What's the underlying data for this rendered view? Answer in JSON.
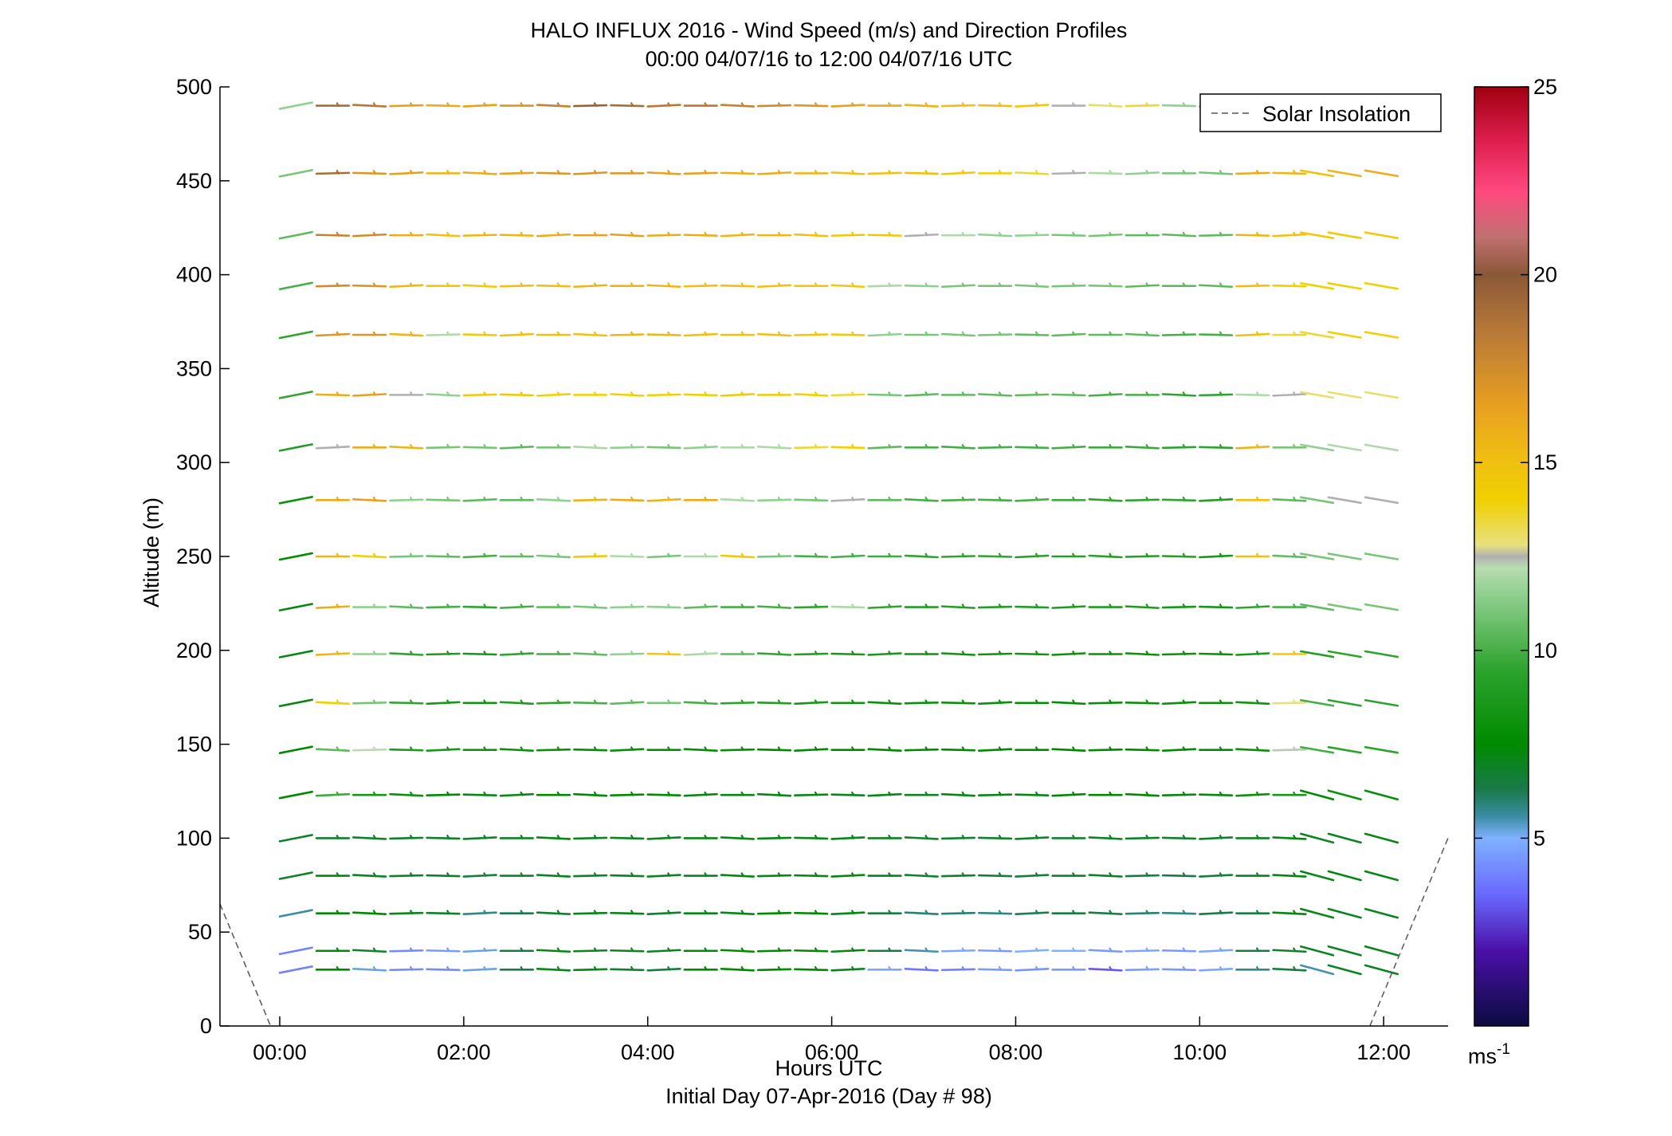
{
  "chart_data": {
    "type": "wind_barb_profile",
    "title": "HALO INFLUX 2016 - Wind Speed (m/s) and Direction Profiles",
    "subtitle": "00:00 04/07/16 to 12:00 04/07/16  UTC",
    "xlabel": "Hours UTC",
    "xlabel2": "Initial Day 07-Apr-2016 (Day # 98)",
    "ylabel": "Altitude (m)",
    "xlim": [
      -0.65,
      12.7
    ],
    "ylim": [
      0,
      500
    ],
    "x_ticks": [
      0,
      2,
      4,
      6,
      8,
      10,
      12
    ],
    "x_tick_labels": [
      "00:00",
      "02:00",
      "04:00",
      "06:00",
      "08:00",
      "10:00",
      "12:00"
    ],
    "y_ticks": [
      0,
      50,
      100,
      150,
      200,
      250,
      300,
      350,
      400,
      450,
      500
    ],
    "y_tick_labels": [
      "0",
      "50",
      "100",
      "150",
      "200",
      "250",
      "300",
      "350",
      "400",
      "450",
      "500"
    ],
    "legend": {
      "label": "Solar Insolation",
      "position": "top-right",
      "style": "dashed",
      "color": "#555555"
    },
    "solar_insolation_curve": {
      "description_free": true,
      "morning": [
        [
          -0.65,
          65
        ],
        [
          -0.1,
          0
        ]
      ],
      "evening": [
        [
          11.85,
          0
        ],
        [
          12.7,
          100
        ]
      ]
    },
    "colorbar": {
      "range": [
        0,
        25
      ],
      "ticks": [
        5,
        10,
        15,
        20,
        25
      ],
      "tick_labels": [
        "5",
        "10",
        "15",
        "20",
        "25"
      ],
      "unit_base": "ms",
      "unit_exp": "-1",
      "stops": [
        [
          0,
          "#0b0b40"
        ],
        [
          2,
          "#4a10a8"
        ],
        [
          3.5,
          "#6a6aff"
        ],
        [
          5,
          "#7fb0ff"
        ],
        [
          5.6,
          "#3a8ca0"
        ],
        [
          6.3,
          "#1a7a4a"
        ],
        [
          7.5,
          "#008a00"
        ],
        [
          9.5,
          "#2ea32e"
        ],
        [
          11.5,
          "#90d090"
        ],
        [
          12.2,
          "#b8dcb0"
        ],
        [
          12.5,
          "#b0b0b0"
        ],
        [
          12.8,
          "#e8e080"
        ],
        [
          14,
          "#f0d000"
        ],
        [
          15,
          "#f0c010"
        ],
        [
          16.5,
          "#e8a020"
        ],
        [
          18.5,
          "#b87838"
        ],
        [
          20,
          "#8a5838"
        ],
        [
          21,
          "#c07070"
        ],
        [
          22.2,
          "#ff4a80"
        ],
        [
          23.5,
          "#e02050"
        ],
        [
          25,
          "#a00010"
        ]
      ]
    },
    "levels": [
      30,
      40,
      60,
      80,
      100,
      123,
      147,
      172,
      198,
      223,
      250,
      280,
      308,
      336,
      368,
      394,
      421,
      454,
      490
    ],
    "times": [
      0,
      0.4,
      0.8,
      1.2,
      1.6,
      2.0,
      2.4,
      2.8,
      3.2,
      3.6,
      4.0,
      4.4,
      4.8,
      5.2,
      5.6,
      6.0,
      6.4,
      6.8,
      7.2,
      7.6,
      8.0,
      8.4,
      8.8,
      9.2,
      9.6,
      10.0,
      10.4,
      10.8,
      11.1,
      11.4,
      11.8
    ],
    "speed_profile_ms": {
      "30": [
        4.0,
        7.5,
        5.2,
        4.2,
        4.2,
        5.2,
        6.3,
        7.2,
        7.2,
        6.8,
        6.5,
        7.5,
        7.5,
        7.5,
        7.5,
        7.0,
        4.8,
        3.8,
        4.0,
        4.6,
        4.4,
        4.5,
        3.2,
        4.6,
        4.5,
        4.8,
        5.8,
        6.5,
        5.5,
        7.0,
        7.0
      ],
      "40": [
        4.0,
        7.3,
        6.8,
        4.2,
        4.6,
        5.2,
        6.5,
        7.2,
        7.0,
        7.0,
        7.0,
        7.3,
        7.5,
        7.5,
        7.5,
        7.2,
        6.5,
        5.5,
        4.8,
        4.6,
        5.0,
        5.0,
        4.5,
        4.8,
        4.5,
        4.8,
        6.5,
        6.8,
        7.0,
        6.8,
        7.0
      ],
      "60": [
        5.6,
        7.5,
        7.5,
        7.0,
        6.8,
        5.8,
        6.3,
        6.8,
        7.0,
        7.0,
        6.8,
        7.2,
        7.2,
        7.5,
        7.5,
        7.2,
        6.5,
        6.0,
        6.0,
        5.8,
        6.2,
        6.5,
        6.3,
        6.0,
        5.8,
        6.3,
        6.5,
        7.2,
        7.2,
        7.0,
        7.0
      ],
      "80": [
        6.8,
        7.2,
        7.0,
        6.8,
        6.8,
        6.5,
        6.8,
        7.0,
        6.8,
        7.0,
        7.0,
        7.0,
        7.2,
        7.2,
        7.2,
        7.2,
        7.0,
        6.8,
        6.8,
        6.5,
        6.5,
        6.8,
        6.8,
        6.5,
        6.3,
        6.5,
        7.0,
        7.2,
        7.2,
        7.2,
        7.2
      ],
      "100": [
        6.8,
        6.8,
        6.8,
        6.8,
        6.8,
        6.8,
        7.0,
        7.2,
        7.0,
        7.0,
        7.0,
        7.2,
        7.2,
        7.2,
        7.2,
        7.2,
        7.0,
        6.8,
        6.8,
        6.8,
        6.8,
        6.8,
        6.8,
        6.8,
        6.8,
        6.8,
        7.0,
        7.2,
        7.0,
        7.0,
        7.2
      ],
      "123": [
        7.5,
        9.8,
        8.5,
        8.0,
        7.5,
        7.2,
        7.2,
        7.5,
        7.5,
        7.5,
        7.5,
        7.2,
        7.2,
        7.2,
        7.2,
        7.0,
        7.2,
        7.0,
        7.2,
        7.2,
        7.2,
        7.5,
        7.5,
        7.5,
        7.2,
        7.2,
        8.0,
        8.5,
        7.5,
        8.0,
        7.8
      ],
      "147": [
        7.5,
        10.5,
        12.2,
        8.8,
        8.5,
        8.2,
        8.0,
        8.0,
        7.8,
        7.8,
        7.8,
        7.8,
        7.8,
        7.5,
        7.5,
        7.5,
        7.5,
        7.5,
        7.5,
        7.5,
        7.5,
        7.5,
        7.5,
        7.5,
        7.5,
        7.2,
        8.0,
        12.3,
        10.0,
        9.5,
        9.5
      ],
      "172": [
        7.2,
        14.0,
        11.0,
        9.5,
        8.5,
        8.2,
        8.8,
        9.5,
        10.0,
        10.5,
        11.0,
        10.0,
        9.5,
        9.0,
        8.5,
        8.2,
        8.0,
        8.0,
        8.0,
        8.0,
        7.8,
        7.8,
        7.8,
        8.0,
        8.0,
        8.0,
        8.2,
        12.8,
        10.0,
        9.5,
        9.5
      ],
      "198": [
        7.2,
        15.5,
        11.5,
        9.5,
        8.8,
        8.5,
        9.5,
        10.0,
        10.5,
        11.5,
        14.5,
        12.0,
        10.5,
        9.5,
        9.0,
        8.5,
        8.5,
        8.2,
        8.2,
        8.2,
        8.2,
        8.0,
        8.0,
        8.0,
        8.0,
        8.0,
        8.5,
        14.5,
        9.0,
        9.5,
        9.5
      ],
      "223": [
        7.2,
        16.0,
        11.5,
        10.5,
        10.0,
        9.5,
        10.0,
        10.5,
        11.0,
        11.5,
        11.5,
        10.5,
        10.0,
        10.0,
        9.5,
        12.0,
        9.5,
        9.0,
        9.0,
        9.0,
        9.0,
        8.8,
        8.8,
        8.8,
        8.5,
        8.5,
        9.5,
        10.0,
        10.5,
        11.0,
        11.0
      ],
      "250": [
        7.5,
        15.5,
        14.0,
        11.0,
        10.5,
        10.0,
        10.5,
        11.0,
        14.5,
        12.0,
        11.0,
        12.0,
        14.5,
        11.0,
        10.0,
        10.0,
        9.8,
        9.5,
        9.5,
        9.5,
        9.2,
        9.2,
        9.2,
        9.0,
        9.0,
        8.5,
        15.0,
        10.5,
        11.0,
        11.0,
        11.0
      ],
      "280": [
        8.0,
        16.0,
        16.5,
        11.5,
        11.0,
        10.5,
        10.5,
        11.5,
        15.5,
        16.0,
        15.5,
        16.0,
        12.0,
        11.5,
        11.0,
        12.5,
        10.5,
        10.0,
        10.0,
        10.0,
        10.0,
        9.8,
        9.5,
        9.5,
        9.5,
        9.0,
        15.0,
        10.5,
        11.0,
        12.5,
        12.5
      ],
      "308": [
        9.0,
        12.5,
        16.0,
        15.5,
        11.0,
        11.0,
        10.5,
        11.0,
        12.0,
        11.5,
        11.0,
        11.5,
        12.0,
        12.0,
        13.5,
        14.0,
        10.5,
        10.0,
        10.0,
        10.0,
        10.0,
        10.0,
        9.8,
        9.8,
        9.5,
        9.5,
        15.5,
        11.0,
        11.5,
        12.0,
        12.0
      ],
      "336": [
        9.5,
        16.0,
        16.5,
        12.5,
        11.5,
        14.5,
        14.5,
        14.0,
        14.0,
        14.0,
        14.0,
        14.0,
        14.5,
        14.5,
        14.0,
        13.5,
        11.0,
        10.5,
        10.5,
        10.5,
        10.5,
        10.5,
        10.0,
        10.0,
        9.5,
        9.5,
        12.0,
        12.5,
        13.0,
        13.0,
        13.0
      ],
      "368": [
        9.5,
        17.0,
        17.0,
        15.5,
        12.0,
        14.5,
        15.0,
        15.0,
        15.0,
        15.5,
        15.5,
        15.0,
        15.0,
        15.0,
        14.5,
        14.5,
        11.5,
        11.0,
        11.0,
        11.0,
        10.5,
        10.5,
        10.5,
        10.5,
        10.0,
        10.0,
        15.0,
        13.5,
        13.5,
        14.0,
        14.0
      ],
      "394": [
        10.0,
        17.5,
        17.0,
        15.5,
        14.5,
        14.5,
        15.0,
        15.0,
        15.5,
        15.5,
        15.5,
        15.0,
        15.0,
        15.0,
        14.5,
        14.5,
        12.0,
        11.5,
        11.0,
        11.0,
        11.0,
        11.0,
        11.0,
        10.5,
        10.5,
        10.5,
        15.0,
        14.0,
        14.0,
        14.0,
        14.0
      ],
      "421": [
        10.5,
        18.0,
        17.5,
        16.0,
        15.0,
        15.5,
        15.5,
        16.0,
        16.5,
        16.5,
        16.0,
        16.0,
        15.5,
        15.5,
        15.0,
        14.5,
        14.5,
        12.5,
        12.0,
        11.5,
        11.5,
        11.0,
        11.0,
        10.5,
        10.5,
        10.5,
        15.5,
        15.0,
        14.5,
        14.5,
        14.5
      ],
      "454": [
        11.0,
        19.0,
        17.0,
        16.5,
        15.5,
        16.0,
        16.5,
        17.0,
        17.0,
        17.0,
        16.5,
        16.5,
        16.0,
        16.0,
        15.5,
        15.0,
        15.0,
        15.0,
        14.5,
        14.0,
        13.5,
        12.5,
        12.0,
        11.5,
        11.0,
        11.0,
        16.0,
        15.5,
        15.0,
        15.5,
        16.0
      ],
      "490": [
        11.5,
        19.0,
        18.5,
        16.5,
        16.0,
        16.5,
        17.0,
        18.0,
        19.5,
        19.0,
        18.5,
        18.5,
        18.0,
        17.5,
        17.0,
        16.5,
        16.0,
        15.5,
        15.0,
        15.0,
        14.5,
        12.5,
        13.0,
        13.5,
        11.5,
        11.0,
        15.5,
        15.0,
        15.0,
        15.0,
        15.5
      ]
    },
    "direction_note": "",
    "missing_segments": {
      "30": [
        [
          4.45,
          4.55
        ]
      ],
      "40": [],
      "60": []
    }
  }
}
